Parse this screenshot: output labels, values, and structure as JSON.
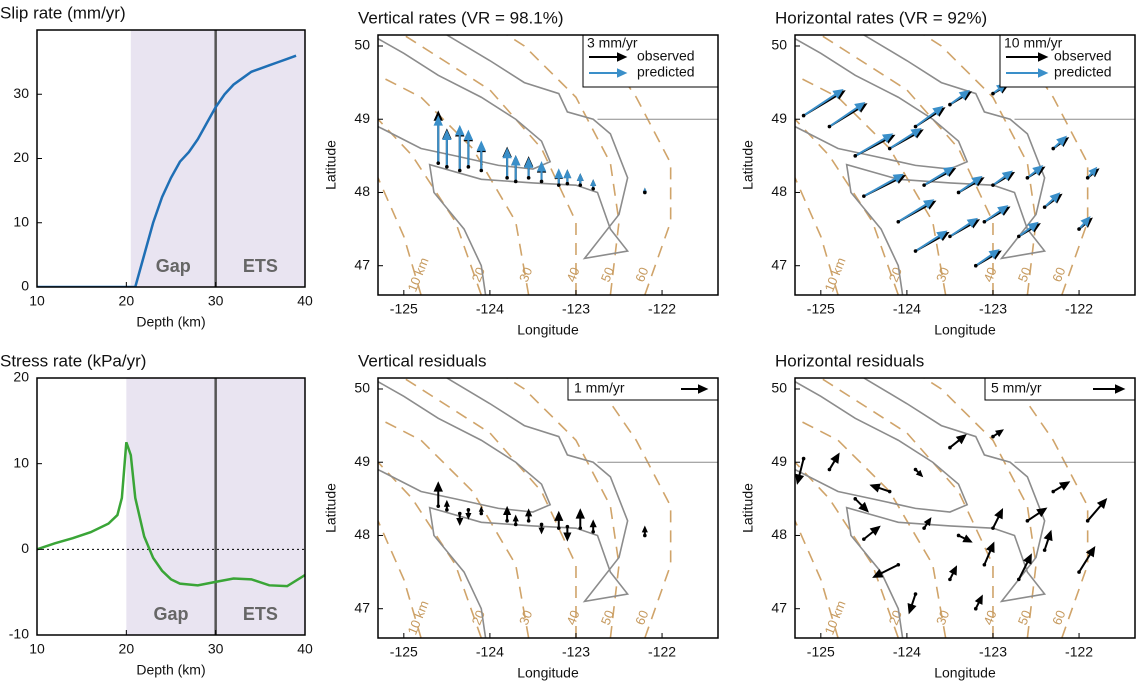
{
  "chart_data": [
    {
      "type": "line",
      "title": "Slip rate (mm/yr)",
      "xlabel": "Depth (km)",
      "x": [
        10,
        20,
        21,
        22,
        23,
        24,
        25,
        26,
        27,
        28,
        29,
        30,
        31,
        32,
        33,
        34,
        35,
        36,
        37,
        38,
        39
      ],
      "values": [
        0,
        0,
        0,
        5,
        10,
        14,
        17,
        19.5,
        21,
        23,
        25.5,
        28,
        30,
        31.5,
        32.5,
        33.5,
        34,
        34.5,
        35,
        35.5,
        36
      ],
      "color": "#1f6fb5",
      "xlim": [
        10,
        40
      ],
      "ylim": [
        0,
        40
      ],
      "xticks": [
        10,
        20,
        30,
        40
      ],
      "yticks": [
        0,
        10,
        20,
        30
      ],
      "shade": [
        20.5,
        40
      ],
      "vline": 30,
      "annotations": [
        "Gap",
        "ETS"
      ]
    },
    {
      "type": "line",
      "title": "Stress rate (kPa/yr)",
      "xlabel": "Depth (km)",
      "x": [
        10,
        12,
        14,
        16,
        18,
        19,
        19.5,
        20,
        20.5,
        21,
        22,
        23,
        24,
        25,
        26,
        28,
        30,
        32,
        34,
        36,
        38,
        40
      ],
      "values": [
        0,
        0.7,
        1.3,
        2,
        3,
        4,
        6,
        12.5,
        11,
        6,
        1.5,
        -1,
        -2.5,
        -3.5,
        -4,
        -4.2,
        -3.8,
        -3.4,
        -3.5,
        -4.2,
        -4.3,
        -3
      ],
      "color": "#3aa537",
      "xlim": [
        10,
        40
      ],
      "ylim": [
        -10,
        20
      ],
      "xticks": [
        10,
        20,
        30,
        40
      ],
      "yticks": [
        -10,
        0,
        10,
        20
      ],
      "shade": [
        20,
        40
      ],
      "vline": 30,
      "hline": 0,
      "annotations": [
        "Gap",
        "ETS"
      ]
    },
    {
      "type": "vector-map",
      "title": "Vertical rates (VR = 98.1%)",
      "xlabel": "Longitude",
      "ylabel": "Latitude",
      "xlim": [
        -125.3,
        -121.35
      ],
      "ylim": [
        46.6,
        50.15
      ],
      "xticks": [
        -125,
        -124,
        -123,
        -122
      ],
      "yticks": [
        47,
        48,
        49,
        50
      ],
      "scale": {
        "value": 3,
        "label": "3 mm/yr"
      },
      "stations": {
        "lon": [
          -124.6,
          -124.5,
          -124.35,
          -124.25,
          -124.1,
          -123.8,
          -123.7,
          -123.55,
          -123.4,
          -123.2,
          -123.1,
          -122.95,
          -122.8,
          -122.2
        ],
        "lat": [
          48.4,
          48.35,
          48.3,
          48.35,
          48.3,
          48.2,
          48.15,
          48.2,
          48.15,
          48.1,
          48.12,
          48.1,
          48.05,
          48.0
        ]
      },
      "series": [
        {
          "name": "observed",
          "color": "#000000",
          "up": [
            4.2,
            3.0,
            3.5,
            2.8,
            2.2,
            2.4,
            2.0,
            1.6,
            1.4,
            1.1,
            1.0,
            0.8,
            0.6,
            0.2
          ]
        },
        {
          "name": "predicted",
          "color": "#3a8fc9",
          "up": [
            3.8,
            2.9,
            3.6,
            2.9,
            2.3,
            2.3,
            2.0,
            1.5,
            1.5,
            1.2,
            1.0,
            0.8,
            0.6,
            0.2
          ]
        }
      ]
    },
    {
      "type": "vector-map",
      "title": "Horizontal rates (VR = 92%)",
      "xlabel": "Longitude",
      "ylabel": "Latitude",
      "xlim": [
        -125.3,
        -121.35
      ],
      "ylim": [
        46.6,
        50.15
      ],
      "xticks": [
        -125,
        -124,
        -123,
        -122
      ],
      "yticks": [
        47,
        48,
        49,
        50
      ],
      "scale": {
        "value": 10,
        "label": "10 mm/yr"
      },
      "stations": {
        "lon": [
          -125.2,
          -124.9,
          -124.6,
          -124.2,
          -123.9,
          -123.5,
          -123.0,
          -124.5,
          -124.1,
          -123.8,
          -123.4,
          -123.0,
          -122.6,
          -122.3,
          -123.9,
          -123.5,
          -123.1,
          -122.7,
          -122.4,
          -122.0,
          -121.9,
          -123.2
        ],
        "lat": [
          49.05,
          48.9,
          48.5,
          48.6,
          48.9,
          49.2,
          49.35,
          47.95,
          47.6,
          48.1,
          48.0,
          48.1,
          48.2,
          48.6,
          47.2,
          47.4,
          47.6,
          47.4,
          47.8,
          47.5,
          48.2,
          47.0
        ]
      },
      "series": [
        {
          "name": "observed",
          "color": "#000000",
          "east": [
            10,
            9,
            9.5,
            8,
            7,
            5,
            3.5,
            10,
            9,
            7.5,
            6,
            5,
            4,
            3.5,
            8,
            7,
            6,
            5,
            4,
            3,
            2.5,
            6
          ],
          "north": [
            6,
            5.5,
            5,
            4.5,
            4.5,
            3,
            2,
            5,
            5,
            4,
            3.5,
            3,
            2.5,
            2.5,
            4.5,
            4,
            3.5,
            3,
            3,
            2.5,
            2,
            3.5
          ]
        },
        {
          "name": "predicted",
          "color": "#3a8fc9",
          "east": [
            9.5,
            8.5,
            9,
            7.5,
            6.5,
            4.5,
            3,
            9.5,
            8.5,
            7,
            5.5,
            4.5,
            3.5,
            3,
            7.5,
            6.5,
            5.5,
            4.5,
            3.5,
            2.5,
            2,
            5.5
          ],
          "north": [
            6.3,
            5.8,
            5.3,
            4.8,
            4.8,
            3.3,
            2.3,
            5.3,
            5.3,
            4.3,
            3.8,
            3.3,
            2.8,
            2.8,
            4.8,
            4.3,
            3.8,
            3.3,
            3.3,
            2.8,
            2.3,
            3.8
          ]
        }
      ]
    },
    {
      "type": "vector-map",
      "title": "Vertical residuals",
      "xlabel": "Longitude",
      "ylabel": "Latitude",
      "xlim": [
        -125.3,
        -121.35
      ],
      "ylim": [
        46.6,
        50.15
      ],
      "xticks": [
        -125,
        -124,
        -123,
        -122
      ],
      "yticks": [
        47,
        48,
        49,
        50
      ],
      "scale": {
        "value": 1,
        "label": "1 mm/yr"
      },
      "stations": {
        "lon": [
          -124.6,
          -124.5,
          -124.35,
          -124.25,
          -124.1,
          -123.8,
          -123.7,
          -123.55,
          -123.4,
          -123.2,
          -123.1,
          -122.95,
          -122.8,
          -122.2
        ],
        "lat": [
          48.4,
          48.35,
          48.3,
          48.35,
          48.3,
          48.2,
          48.15,
          48.2,
          48.15,
          48.1,
          48.12,
          48.1,
          48.05,
          48.0
        ]
      },
      "series": [
        {
          "color": "#000000",
          "up": [
            0.9,
            0.3,
            -0.4,
            -0.3,
            0.2,
            0.5,
            0.3,
            0.4,
            -0.3,
            0.6,
            -0.5,
            0.7,
            0.4,
            0.3
          ]
        }
      ]
    },
    {
      "type": "vector-map",
      "title": "Horizontal residuals",
      "xlabel": "Longitude",
      "ylabel": "Latitude",
      "xlim": [
        -125.3,
        -121.35
      ],
      "ylim": [
        46.6,
        50.15
      ],
      "xticks": [
        -125,
        -124,
        -123,
        -122
      ],
      "yticks": [
        47,
        48,
        49,
        50
      ],
      "scale": {
        "value": 5,
        "label": "5 mm/yr"
      },
      "stations": {
        "lon": [
          -125.2,
          -124.9,
          -124.6,
          -124.2,
          -123.9,
          -123.5,
          -123.0,
          -124.5,
          -124.1,
          -123.8,
          -123.4,
          -123.0,
          -122.6,
          -122.3,
          -123.9,
          -123.5,
          -123.1,
          -122.7,
          -122.4,
          -122.0,
          -121.9,
          -123.2
        ],
        "lat": [
          49.05,
          48.9,
          48.5,
          48.6,
          48.9,
          49.2,
          49.35,
          47.95,
          47.6,
          48.1,
          48.0,
          48.1,
          48.2,
          48.6,
          47.2,
          47.4,
          47.6,
          47.4,
          47.8,
          47.5,
          48.2,
          47.0
        ]
      },
      "series": [
        {
          "color": "#000000",
          "east": [
            -1,
            1.5,
            2,
            -3,
            1,
            2.5,
            1.5,
            2.5,
            -4,
            1,
            2,
            1.5,
            3,
            2.5,
            -1,
            1,
            1.5,
            2,
            1,
            2.5,
            3,
            1
          ],
          "north": [
            -4,
            2.5,
            -2,
            1,
            -1,
            2,
            1,
            2,
            -2,
            1.5,
            -1,
            3,
            2,
            1.5,
            -3,
            2,
            3.5,
            4,
            3,
            4,
            3.5,
            2
          ]
        }
      ]
    }
  ],
  "slab_contours": [
    {
      "label": "10 km",
      "lon": [
        -124.8,
        -125.0,
        -125.3
      ],
      "lat": [
        46.6,
        47.4,
        48.2
      ]
    },
    {
      "label": "20",
      "lon": [
        -124.1,
        -124.4,
        -124.9,
        -125.3
      ],
      "lat": [
        46.6,
        47.6,
        48.5,
        49.0
      ]
    },
    {
      "label": "30",
      "lon": [
        -123.55,
        -123.7,
        -124.2,
        -124.8,
        -125.3
      ],
      "lat": [
        46.6,
        47.6,
        48.6,
        49.3,
        49.6
      ]
    },
    {
      "label": "40",
      "lon": [
        -123.0,
        -123.0,
        -123.4,
        -124.0,
        -124.8,
        -125.0
      ],
      "lat": [
        46.6,
        47.6,
        48.6,
        49.4,
        50.0,
        50.15
      ]
    },
    {
      "label": "50",
      "lon": [
        -122.6,
        -122.5,
        -122.6,
        -123.0,
        -123.6,
        -123.8
      ],
      "lat": [
        46.6,
        47.6,
        48.4,
        49.3,
        50.0,
        50.15
      ]
    },
    {
      "label": "60",
      "lon": [
        -122.2,
        -121.9,
        -121.9,
        -122.3,
        -122.8
      ],
      "lat": [
        46.6,
        47.6,
        48.4,
        49.3,
        50.15
      ]
    }
  ]
}
